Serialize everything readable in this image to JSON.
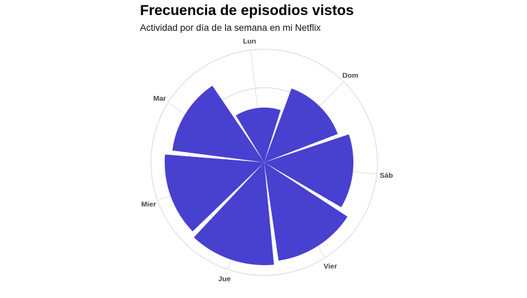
{
  "title": "Frecuencia de episodios vistos",
  "subtitle": "Actividad por día de la semana en mi Netflix",
  "colors": {
    "bar": "#4840CF",
    "grid": "#E5E5E5",
    "text": "#444444"
  },
  "chart_data": {
    "type": "bar",
    "coord": "polar",
    "title": "Frecuencia de episodios vistos",
    "subtitle": "Actividad por día de la semana en mi Netflix",
    "categories": [
      "Dom",
      "Sáb",
      "Vier",
      "Jue",
      "Mier",
      "Mar",
      "Lun"
    ],
    "values": [
      115,
      130,
      145,
      150,
      145,
      135,
      80
    ],
    "rlim": [
      0,
      165
    ],
    "grid": true,
    "legend": "none"
  }
}
